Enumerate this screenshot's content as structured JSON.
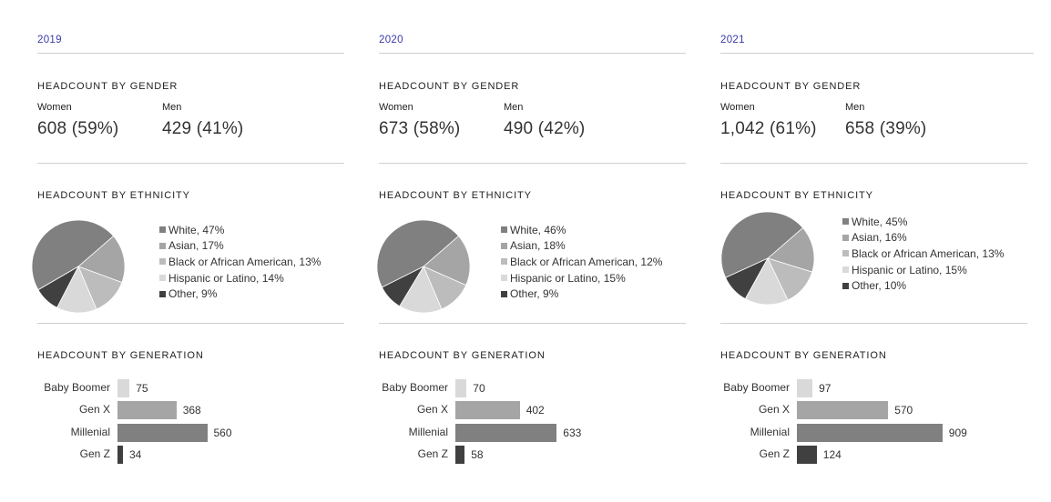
{
  "chart_data": [
    {
      "type": "panel",
      "year": "2019",
      "gender": {
        "title": "HEADCOUNT BY GENDER",
        "women_label": "Women",
        "women_value": "608 (59%)",
        "men_label": "Men",
        "men_value": "429 (41%)"
      },
      "ethnicity": {
        "type": "pie",
        "title": "HEADCOUNT BY ETHNICITY",
        "slices": [
          {
            "name": "White",
            "value": 47,
            "label": "White, 47%",
            "color": "#808080"
          },
          {
            "name": "Asian",
            "value": 17,
            "label": "Asian, 17%",
            "color": "#a5a5a5"
          },
          {
            "name": "Black or African American",
            "value": 13,
            "label": "Black or African American, 13%",
            "color": "#bcbcbc"
          },
          {
            "name": "Hispanic or Latino",
            "value": 14,
            "label": "Hispanic or Latino, 14%",
            "color": "#d9d9d9"
          },
          {
            "name": "Other",
            "value": 9,
            "label": "Other, 9%",
            "color": "#404040"
          }
        ]
      },
      "generation": {
        "type": "bar",
        "title": "HEADCOUNT BY GENERATION",
        "categories": [
          "Baby Boomer",
          "Gen X",
          "Millenial",
          "Gen Z"
        ],
        "values": [
          75,
          368,
          560,
          34
        ],
        "value_labels": [
          "75",
          "368",
          "560",
          "34"
        ],
        "colors": [
          "#d9d9d9",
          "#a5a5a5",
          "#808080",
          "#404040"
        ]
      }
    },
    {
      "type": "panel",
      "year": "2020",
      "gender": {
        "title": "HEADCOUNT BY GENDER",
        "women_label": "Women",
        "women_value": "673 (58%)",
        "men_label": "Men",
        "men_value": "490 (42%)"
      },
      "ethnicity": {
        "type": "pie",
        "title": "HEADCOUNT BY ETHNICITY",
        "slices": [
          {
            "name": "White",
            "value": 46,
            "label": "White, 46%",
            "color": "#808080"
          },
          {
            "name": "Asian",
            "value": 18,
            "label": "Asian, 18%",
            "color": "#a5a5a5"
          },
          {
            "name": "Black or African American",
            "value": 12,
            "label": "Black or African American, 12%",
            "color": "#bcbcbc"
          },
          {
            "name": "Hispanic or Latino",
            "value": 15,
            "label": "Hispanic or Latino, 15%",
            "color": "#d9d9d9"
          },
          {
            "name": "Other",
            "value": 9,
            "label": "Other, 9%",
            "color": "#404040"
          }
        ]
      },
      "generation": {
        "type": "bar",
        "title": "HEADCOUNT BY GENERATION",
        "categories": [
          "Baby Boomer",
          "Gen X",
          "Millenial",
          "Gen Z"
        ],
        "values": [
          70,
          402,
          633,
          58
        ],
        "value_labels": [
          "70",
          "402",
          "633",
          "58"
        ],
        "colors": [
          "#d9d9d9",
          "#a5a5a5",
          "#808080",
          "#404040"
        ]
      }
    },
    {
      "type": "panel",
      "year": "2021",
      "gender": {
        "title": "HEADCOUNT BY GENDER",
        "women_label": "Women",
        "women_value": "1,042 (61%)",
        "men_label": "Men",
        "men_value": "658 (39%)"
      },
      "ethnicity": {
        "type": "pie",
        "title": "HEADCOUNT BY ETHNICITY",
        "slices": [
          {
            "name": "White",
            "value": 45,
            "label": "White, 45%",
            "color": "#808080"
          },
          {
            "name": "Asian",
            "value": 16,
            "label": "Asian, 16%",
            "color": "#a5a5a5"
          },
          {
            "name": "Black or African American",
            "value": 13,
            "label": "Black or African American, 13%",
            "color": "#bcbcbc"
          },
          {
            "name": "Hispanic or Latino",
            "value": 15,
            "label": "Hispanic or Latino, 15%",
            "color": "#d9d9d9"
          },
          {
            "name": "Other",
            "value": 10,
            "label": "Other, 10%",
            "color": "#404040"
          }
        ]
      },
      "generation": {
        "type": "bar",
        "title": "HEADCOUNT BY GENERATION",
        "categories": [
          "Baby Boomer",
          "Gen X",
          "Millenial",
          "Gen Z"
        ],
        "values": [
          97,
          570,
          909,
          124
        ],
        "value_labels": [
          "97",
          "570",
          "909",
          "124"
        ],
        "colors": [
          "#d9d9d9",
          "#a5a5a5",
          "#808080",
          "#404040"
        ]
      }
    }
  ]
}
